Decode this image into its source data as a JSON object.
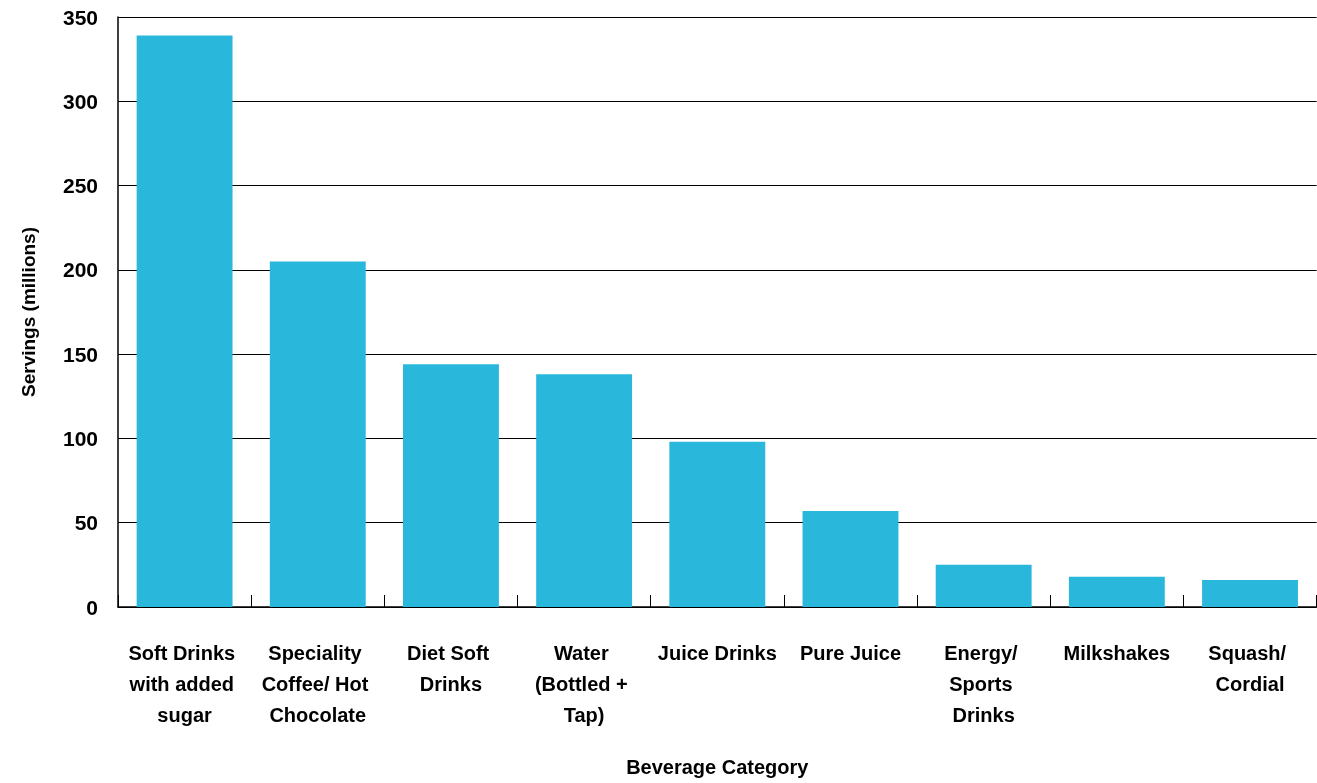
{
  "chart_data": {
    "type": "bar",
    "xlabel": "Beverage Category",
    "ylabel": "Servings (millions)",
    "categories": [
      "Soft Drinks with added sugar",
      "Speciality Coffee/ Hot Chocolate",
      "Diet Soft Drinks",
      "Water (Bottled + Tap)",
      "Juice Drinks",
      "Pure Juice",
      "Energy/ Sports Drinks",
      "Milkshakes",
      "Squash/ Cordial"
    ],
    "values": [
      339,
      205,
      144,
      138,
      98,
      57,
      25,
      18,
      16
    ],
    "color": "#29b8db",
    "ylim": [
      0,
      350
    ],
    "yticks": [
      0,
      50,
      100,
      150,
      200,
      250,
      300,
      350
    ],
    "grid": "y"
  }
}
